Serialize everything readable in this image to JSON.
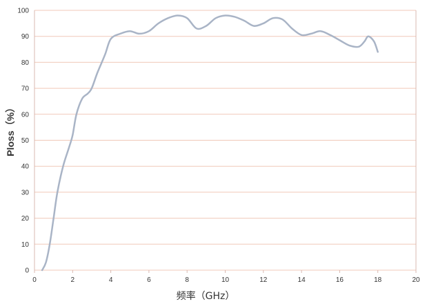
{
  "chart_data": {
    "type": "line",
    "title": "",
    "xlabel": "频率（GHz）",
    "ylabel": "Ploss（%）",
    "xlim": [
      0,
      20
    ],
    "ylim": [
      0,
      100
    ],
    "x_ticks": [
      0,
      2,
      4,
      6,
      8,
      10,
      12,
      14,
      16,
      18,
      20
    ],
    "y_ticks": [
      0,
      10,
      20,
      30,
      40,
      50,
      60,
      70,
      80,
      90,
      100
    ],
    "grid": "horizontal",
    "legend": "none",
    "series": [
      {
        "color": "#a9b4c6",
        "points": [
          [
            0.4,
            0
          ],
          [
            0.6,
            3
          ],
          [
            0.8,
            10
          ],
          [
            1.0,
            20
          ],
          [
            1.2,
            30
          ],
          [
            1.5,
            40
          ],
          [
            1.8,
            47
          ],
          [
            2.0,
            52
          ],
          [
            2.2,
            60
          ],
          [
            2.5,
            66
          ],
          [
            2.8,
            68
          ],
          [
            3.0,
            70
          ],
          [
            3.3,
            76
          ],
          [
            3.7,
            83
          ],
          [
            4.0,
            89
          ],
          [
            4.5,
            91
          ],
          [
            5.0,
            92
          ],
          [
            5.5,
            91
          ],
          [
            6.0,
            92
          ],
          [
            6.5,
            95
          ],
          [
            7.0,
            97
          ],
          [
            7.5,
            98
          ],
          [
            8.0,
            97
          ],
          [
            8.5,
            93
          ],
          [
            9.0,
            94
          ],
          [
            9.5,
            97
          ],
          [
            10.0,
            98
          ],
          [
            10.5,
            97.5
          ],
          [
            11.0,
            96
          ],
          [
            11.5,
            94
          ],
          [
            12.0,
            95
          ],
          [
            12.5,
            97
          ],
          [
            13.0,
            96.5
          ],
          [
            13.5,
            93
          ],
          [
            14.0,
            90.5
          ],
          [
            14.5,
            91
          ],
          [
            15.0,
            92
          ],
          [
            15.5,
            90.5
          ],
          [
            16.0,
            88.5
          ],
          [
            16.5,
            86.5
          ],
          [
            17.0,
            86
          ],
          [
            17.3,
            88
          ],
          [
            17.5,
            90
          ],
          [
            17.8,
            88
          ],
          [
            18.0,
            84
          ]
        ]
      }
    ]
  },
  "colors": {
    "line": "#a9b4c6",
    "grid": "#f0c8b8",
    "frame": "#d8b8b0",
    "text": "#333333"
  }
}
